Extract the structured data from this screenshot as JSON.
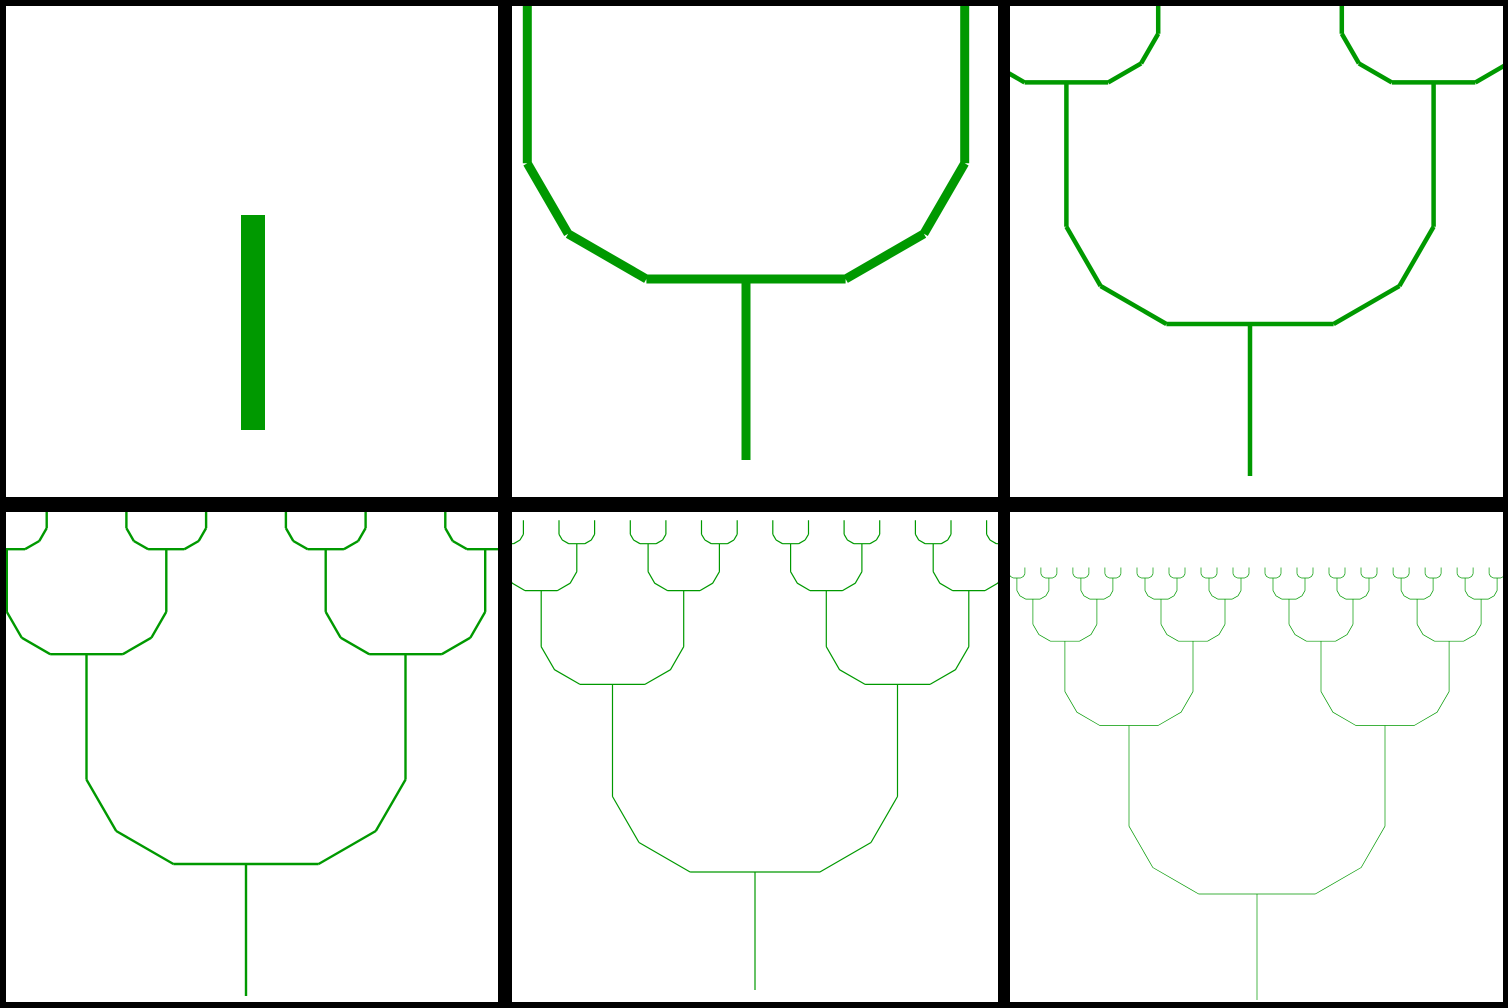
{
  "figure": {
    "background_color": "#000000",
    "panel_color": "#ffffff",
    "stroke_color": "#009900",
    "panels": [
      {
        "stage": 0,
        "depth": 0,
        "root_angle_deg": 90
      },
      {
        "stage": 1,
        "depth": 1,
        "root_angle_deg": 90
      },
      {
        "stage": 2,
        "depth": 2,
        "root_angle_deg": 90
      },
      {
        "stage": 3,
        "depth": 3,
        "root_angle_deg": 90
      },
      {
        "stage": 4,
        "depth": 4,
        "root_angle_deg": 90
      },
      {
        "stage": 5,
        "depth": 5,
        "root_angle_deg": 90
      }
    ],
    "branch_rule": {
      "arm_segment_angles_deg": [
        0,
        30,
        60,
        90
      ],
      "arm_segment_scales": [
        0.55,
        0.5,
        0.45,
        0.45
      ]
    }
  }
}
